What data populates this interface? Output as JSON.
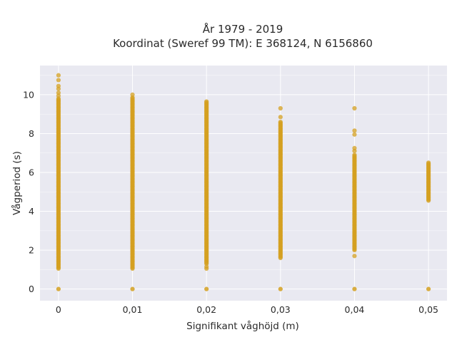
{
  "chart_data": {
    "type": "scatter",
    "title_lines": [
      "År 1979 - 2019",
      "Koordinat (Sweref 99 TM): E 368124, N 6156860"
    ],
    "xlabel": "Signifikant våghöjd (m)",
    "ylabel": "Vågperiod (s)",
    "x_ticks": [
      0,
      0.01,
      0.02,
      0.03,
      0.04,
      0.05
    ],
    "x_tick_labels": [
      "0",
      "0,01",
      "0,02",
      "0,03",
      "0,04",
      "0,05"
    ],
    "y_ticks": [
      0,
      2,
      4,
      6,
      8,
      10
    ],
    "y_tick_labels": [
      "0",
      "2",
      "4",
      "6",
      "8",
      "10"
    ],
    "xlim": [
      -0.0025,
      0.0525
    ],
    "ylim": [
      -0.6,
      11.5
    ],
    "grid": true,
    "colors": {
      "background": "#e9e9f1",
      "grid": "#ffffff",
      "marker": "#d4a020"
    },
    "columns": [
      {
        "x": 0,
        "y_min": 1.05,
        "y_max": 9.8,
        "zero_point": true,
        "extra_y": [
          9.95,
          10.1,
          10.3,
          10.45,
          10.75,
          11.0
        ]
      },
      {
        "x": 0.01,
        "y_min": 1.05,
        "y_max": 9.85,
        "zero_point": true,
        "extra_y": [
          10.0
        ]
      },
      {
        "x": 0.02,
        "y_min": 1.3,
        "y_max": 9.65,
        "zero_point": true,
        "extra_y": [
          1.05,
          1.15
        ]
      },
      {
        "x": 0.03,
        "y_min": 1.6,
        "y_max": 8.6,
        "zero_point": true,
        "extra_y": [
          8.85,
          9.3
        ]
      },
      {
        "x": 0.04,
        "y_min": 2.0,
        "y_max": 6.9,
        "zero_point": true,
        "extra_y": [
          1.7,
          7.1,
          7.25,
          7.95,
          8.15,
          9.3
        ]
      },
      {
        "x": 0.05,
        "y_min": 4.55,
        "y_max": 6.5,
        "zero_point": true,
        "extra_y": []
      }
    ]
  }
}
